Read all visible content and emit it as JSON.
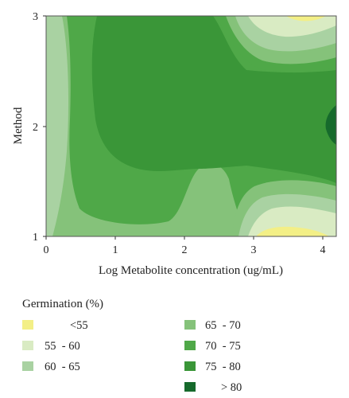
{
  "chart_data": {
    "type": "contour",
    "xlabel": "Log Metabolite concentration (ug/mL)",
    "ylabel": "Method",
    "xlim": [
      0,
      4.2
    ],
    "ylim": [
      1,
      3
    ],
    "xticks": [
      "0",
      "1",
      "2",
      "3",
      "4"
    ],
    "yticks": [
      "1",
      "2",
      "3"
    ],
    "legend_title": "Germination (%)",
    "legend": [
      {
        "label": "<55",
        "color": "#f3ef86"
      },
      {
        "label": "55  - 60",
        "color": "#d9ebc3"
      },
      {
        "label": "60  - 65",
        "color": "#a9d2a2"
      },
      {
        "label": "65  - 70",
        "color": "#85c27a"
      },
      {
        "label": "70  - 75",
        "color": "#4fa848"
      },
      {
        "label": "75  - 80",
        "color": "#3a9638"
      },
      {
        "label": "> 80",
        "color": "#166a2c"
      }
    ]
  }
}
